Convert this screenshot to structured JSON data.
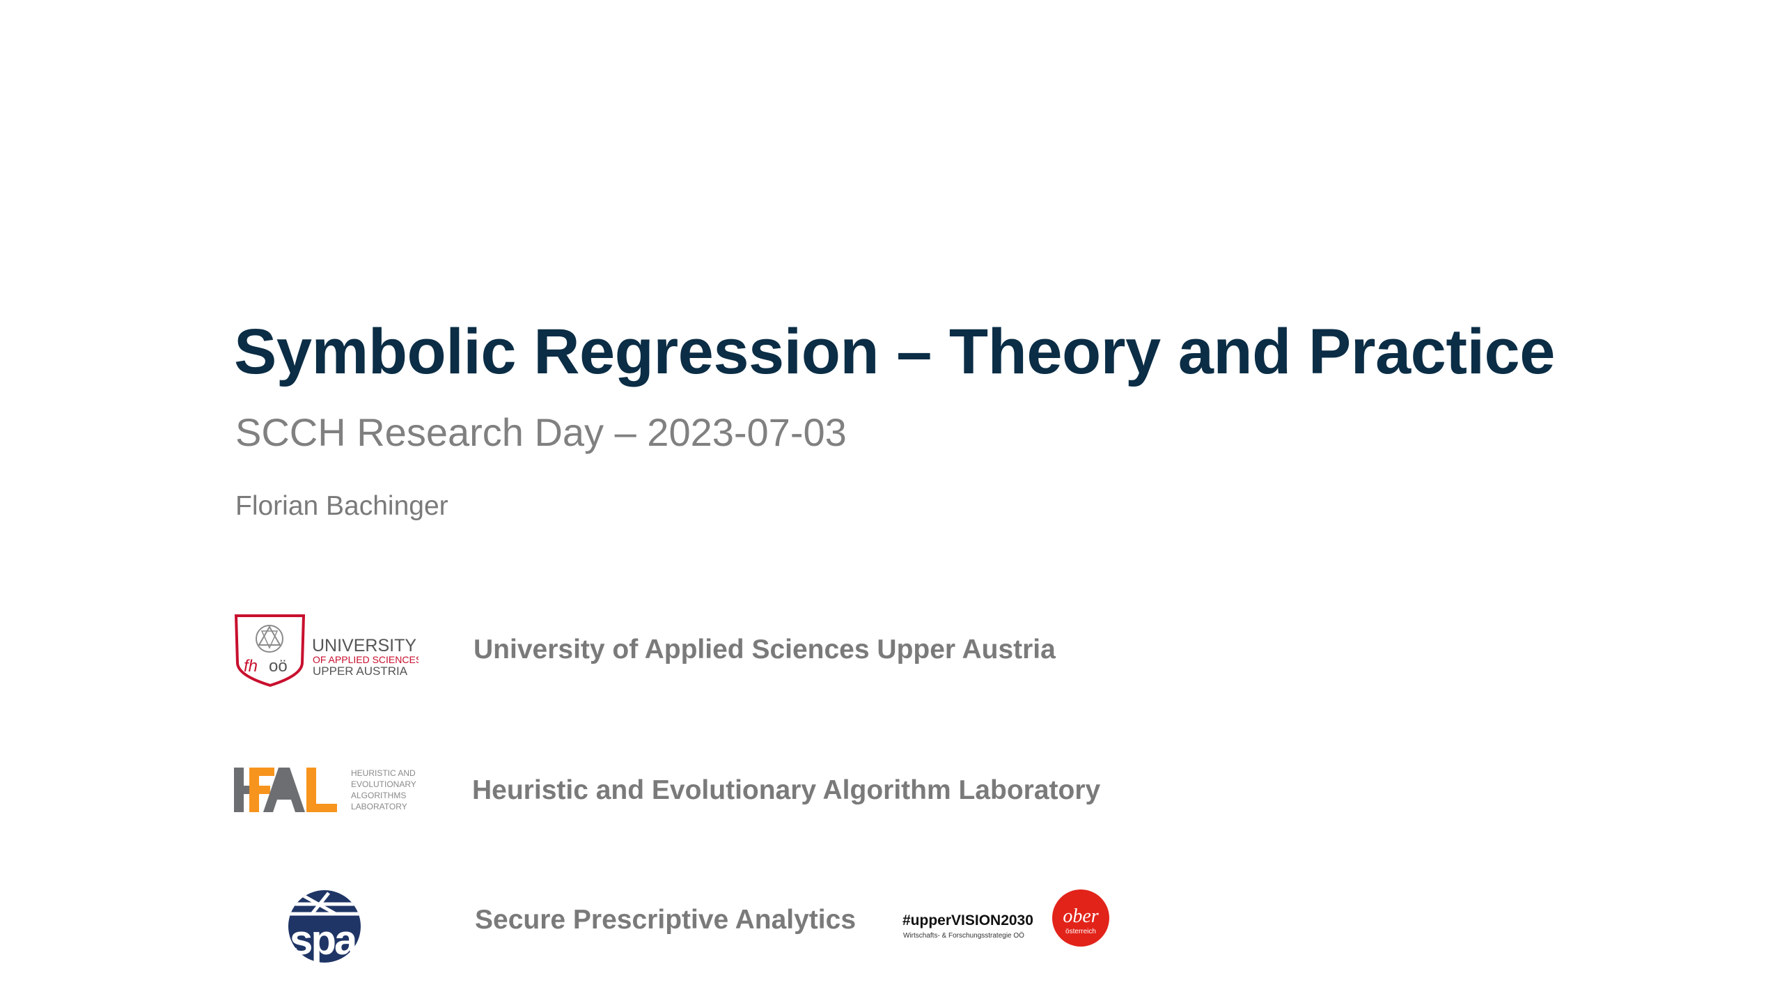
{
  "slide": {
    "title": "Symbolic Regression – Theory and Practice",
    "subtitle": "SCCH Research Day – 2023-07-03",
    "author": "Florian Bachinger"
  },
  "organizations": [
    {
      "label": "University of Applied Sciences Upper Austria",
      "logo_icon": "fh-ooe-logo",
      "logo_text": [
        "UNIVERSITY",
        "OF APPLIED SCIENCES",
        "UPPER AUSTRIA"
      ]
    },
    {
      "label": "Heuristic and Evolutionary Algorithm Laboratory",
      "logo_icon": "heal-logo",
      "logo_text": [
        "HEURISTIC AND",
        "EVOLUTIONARY",
        "ALGORITHMS",
        "LABORATORY"
      ]
    },
    {
      "label": "Secure Prescriptive Analytics",
      "logo_icon": "spa-logo"
    }
  ],
  "funding": {
    "vision_text": "#upperVISION2030",
    "vision_subtext": "Wirtschafts- & Forschungsstrategie OÖ",
    "ooe_logo_text": "ober",
    "ooe_logo_subtext": "österreich"
  },
  "colors": {
    "title": "#0b2d45",
    "subtitle": "#808080",
    "fh_red": "#c8102e",
    "heal_orange": "#f7941d",
    "heal_gray": "#6d6e71",
    "spa_blue": "#1f3566",
    "ooe_red": "#e2231a"
  }
}
